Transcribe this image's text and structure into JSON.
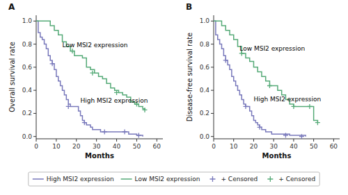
{
  "chart_data": [
    {
      "type": "line",
      "title": "A",
      "xlabel": "Months",
      "ylabel": "Overall survival rate",
      "xlim": [
        0,
        63
      ],
      "ylim": [
        -0.02,
        1.05
      ],
      "xticks": [
        0,
        10,
        20,
        30,
        40,
        50,
        60
      ],
      "yticks": [
        {
          "value": 0.0,
          "label": "0.0"
        },
        0.2,
        0.4,
        0.6,
        0.8,
        {
          "value": 1.0,
          "label": "1.0"
        }
      ],
      "legend": "bottom",
      "series": [
        {
          "name": "High MSI2 expression",
          "type": "step",
          "color": "#7878bb",
          "x": [
            0,
            1,
            2,
            3,
            4,
            5,
            6,
            7,
            8,
            9,
            10,
            11,
            12,
            13,
            14,
            15,
            16,
            17,
            18,
            19,
            20,
            21,
            22,
            23,
            24,
            25,
            26,
            27,
            28,
            29,
            30,
            32,
            34,
            36,
            38,
            40,
            42,
            44,
            46,
            48,
            50,
            52,
            53
          ],
          "values": [
            1.0,
            0.9,
            0.86,
            0.84,
            0.8,
            0.76,
            0.7,
            0.66,
            0.63,
            0.58,
            0.52,
            0.48,
            0.44,
            0.4,
            0.36,
            0.32,
            0.28,
            0.26,
            0.26,
            0.26,
            0.26,
            0.22,
            0.18,
            0.14,
            0.12,
            0.1,
            0.1,
            0.08,
            0.06,
            0.06,
            0.06,
            0.04,
            0.04,
            0.04,
            0.04,
            0.04,
            0.04,
            0.04,
            0.02,
            0.02,
            0.01,
            0.01,
            0.0
          ]
        },
        {
          "name": "Low MSI2 expression",
          "type": "step",
          "color": "#55aa77",
          "x": [
            0,
            3,
            5,
            7,
            9,
            11,
            13,
            15,
            17,
            19,
            21,
            23,
            25,
            27,
            29,
            31,
            33,
            35,
            37,
            39,
            41,
            43,
            45,
            47,
            49,
            51,
            53,
            54
          ],
          "values": [
            1.0,
            1.0,
            1.0,
            0.96,
            0.92,
            0.88,
            0.82,
            0.78,
            0.74,
            0.7,
            0.7,
            0.68,
            0.6,
            0.58,
            0.55,
            0.52,
            0.5,
            0.46,
            0.42,
            0.4,
            0.38,
            0.36,
            0.34,
            0.3,
            0.28,
            0.26,
            0.24,
            0.23
          ]
        },
        {
          "name": "+ Censored",
          "type": "scatter",
          "marker": "plus",
          "color": "#7878bb",
          "x": [
            8,
            16,
            24,
            34,
            44,
            51
          ],
          "values": [
            0.63,
            0.26,
            0.12,
            0.04,
            0.04,
            0.01
          ]
        },
        {
          "name": "+ Censored",
          "type": "scatter",
          "marker": "plus",
          "color": "#55aa77",
          "x": [
            18,
            28,
            40,
            50,
            54
          ],
          "values": [
            0.74,
            0.55,
            0.38,
            0.28,
            0.23
          ]
        }
      ],
      "annotations": [
        {
          "text": "Low MSI2 expression",
          "x": 13,
          "y": 0.76
        },
        {
          "text": "High MSI2 expression",
          "x": 22,
          "y": 0.28
        }
      ]
    },
    {
      "type": "line",
      "title": "B",
      "xlabel": "Months",
      "ylabel": "Disease-free survival rate",
      "xlim": [
        0,
        63
      ],
      "ylim": [
        -0.02,
        1.05
      ],
      "xticks": [
        0,
        10,
        20,
        30,
        40,
        50,
        60
      ],
      "yticks": [
        {
          "value": 0.0,
          "label": "0.0"
        },
        0.2,
        0.4,
        0.6,
        0.8,
        {
          "value": 1.0,
          "label": "1.0"
        }
      ],
      "series": [
        {
          "type": "step",
          "color": "#7878bb",
          "x": [
            0,
            1,
            2,
            3,
            4,
            5,
            6,
            7,
            8,
            9,
            10,
            11,
            12,
            13,
            14,
            15,
            16,
            17,
            18,
            19,
            20,
            21,
            22,
            23,
            24,
            25,
            26,
            27,
            28,
            29,
            30,
            32,
            34,
            36,
            38,
            40,
            42,
            44,
            46
          ],
          "values": [
            1.0,
            0.88,
            0.84,
            0.8,
            0.76,
            0.7,
            0.66,
            0.62,
            0.58,
            0.52,
            0.48,
            0.44,
            0.4,
            0.36,
            0.32,
            0.28,
            0.26,
            0.26,
            0.22,
            0.18,
            0.14,
            0.12,
            0.1,
            0.08,
            0.06,
            0.06,
            0.04,
            0.04,
            0.04,
            0.02,
            0.02,
            0.02,
            0.02,
            0.02,
            0.01,
            0.01,
            0.01,
            0.01,
            0.0
          ]
        },
        {
          "type": "step",
          "color": "#55aa77",
          "x": [
            0,
            2,
            4,
            6,
            8,
            10,
            12,
            14,
            16,
            18,
            20,
            22,
            24,
            26,
            28,
            30,
            32,
            34,
            36,
            38,
            40,
            42,
            44,
            46,
            48,
            50,
            52
          ],
          "values": [
            1.0,
            1.0,
            0.96,
            0.92,
            0.88,
            0.84,
            0.78,
            0.72,
            0.68,
            0.65,
            0.6,
            0.56,
            0.52,
            0.48,
            0.44,
            0.44,
            0.4,
            0.36,
            0.32,
            0.28,
            0.26,
            0.26,
            0.26,
            0.26,
            0.26,
            0.14,
            0.12
          ]
        },
        {
          "type": "scatter",
          "marker": "plus",
          "color": "#7878bb",
          "x": [
            6,
            16,
            23,
            36,
            44
          ],
          "values": [
            0.66,
            0.26,
            0.08,
            0.01,
            0.0
          ]
        },
        {
          "type": "scatter",
          "marker": "plus",
          "color": "#55aa77",
          "x": [
            14,
            28,
            40,
            48,
            52
          ],
          "values": [
            0.72,
            0.44,
            0.26,
            0.26,
            0.12
          ]
        }
      ],
      "annotations": [
        {
          "text": "Low MSI2 expression",
          "x": 13,
          "y": 0.73
        },
        {
          "text": "High MSI2 expression",
          "x": 20,
          "y": 0.29
        }
      ]
    }
  ]
}
